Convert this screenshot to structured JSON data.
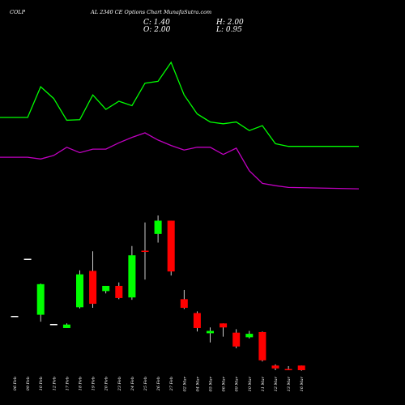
{
  "header": {
    "symbol": "COLP",
    "subtitle": "AL 2340  CE Options  Chart MunafaSutra.com"
  },
  "ohlc": {
    "close": "C: 1.40",
    "open": "O: 2.00",
    "high": "H: 2.00",
    "low": "L: 0.95"
  },
  "colors": {
    "background": "#000000",
    "up": "#00ff00",
    "down": "#ff0000",
    "neutral": "#ffffff",
    "line_fast": "#00ff00",
    "line_slow": "#c000c0"
  },
  "chart_data": [
    {
      "type": "line",
      "title": "",
      "grid": false,
      "series": [
        {
          "values": [
            7.8,
            7.8,
            11.2,
            9.9,
            7.5,
            7.55,
            10.3,
            8.7,
            9.6,
            9.1,
            11.6,
            11.8,
            13.9,
            10.3,
            8.2,
            7.3,
            7.1,
            7.3,
            6.35,
            6.9,
            4.9,
            4.6,
            4.6
          ]
        },
        {
          "values": [
            3.4,
            3.4,
            3.2,
            3.6,
            4.5,
            3.9,
            4.3,
            4.3,
            5.0,
            5.6,
            6.1,
            5.3,
            4.7,
            4.2,
            4.5,
            4.5,
            3.7,
            4.4,
            1.9,
            0.5,
            0.25,
            0.05,
            -0.1
          ]
        }
      ]
    },
    {
      "type": "candlestick",
      "title": "",
      "grid": false,
      "categories": [
        "06 Feb",
        "09 Feb",
        "10 Feb",
        "12 Feb",
        "17 Feb",
        "18 Feb",
        "19 Feb",
        "20 Feb",
        "23 Feb",
        "24 Feb",
        "25 Feb",
        "26 Feb",
        "27 Feb",
        "02 Mar",
        "04 Mar",
        "05 Mar",
        "06 Mar",
        "09 Mar",
        "10 Mar",
        "11 Mar",
        "12 Mar",
        "13 Mar",
        "16 Mar"
      ],
      "candles": [
        {
          "open": 4.35,
          "high": 4.35,
          "low": 4.35,
          "close": 4.35
        },
        {
          "open": 9.3,
          "high": 9.3,
          "low": 9.3,
          "close": 9.3
        },
        {
          "open": 4.45,
          "high": 7.15,
          "low": 3.85,
          "close": 7.1
        },
        {
          "open": 3.65,
          "high": 3.65,
          "low": 3.65,
          "close": 3.65
        },
        {
          "open": 3.3,
          "high": 3.7,
          "low": 3.3,
          "close": 3.6
        },
        {
          "open": 5.1,
          "high": 8.3,
          "low": 5.0,
          "close": 7.95
        },
        {
          "open": 8.25,
          "high": 9.95,
          "low": 5.05,
          "close": 5.4
        },
        {
          "open": 6.5,
          "high": 6.95,
          "low": 6.3,
          "close": 6.95
        },
        {
          "open": 6.95,
          "high": 7.25,
          "low": 5.8,
          "close": 5.9
        },
        {
          "open": 5.95,
          "high": 10.4,
          "low": 5.75,
          "close": 9.6
        },
        {
          "open": 10.0,
          "high": 12.45,
          "low": 7.5,
          "close": 9.9
        },
        {
          "open": 11.45,
          "high": 13.05,
          "low": 10.7,
          "close": 12.6
        },
        {
          "open": 12.6,
          "high": 12.6,
          "low": 7.85,
          "close": 8.2
        },
        {
          "open": 5.8,
          "high": 6.6,
          "low": 4.95,
          "close": 5.05
        },
        {
          "open": 4.6,
          "high": 4.75,
          "low": 3.0,
          "close": 3.3
        },
        {
          "open": 2.85,
          "high": 3.35,
          "low": 2.05,
          "close": 3.05
        },
        {
          "open": 3.7,
          "high": 3.7,
          "low": 2.55,
          "close": 3.35
        },
        {
          "open": 2.9,
          "high": 3.2,
          "low": 1.55,
          "close": 1.7
        },
        {
          "open": 2.5,
          "high": 3.05,
          "low": 2.4,
          "close": 2.8
        },
        {
          "open": 2.95,
          "high": 3.0,
          "low": 0.4,
          "close": 0.5
        },
        {
          "open": 0.05,
          "high": 0.15,
          "low": -0.35,
          "close": -0.2
        },
        {
          "open": -0.25,
          "high": 0.0,
          "low": -0.35,
          "close": -0.35
        },
        {
          "open": 0.05,
          "high": 0.05,
          "low": -0.4,
          "close": -0.35
        }
      ]
    }
  ]
}
